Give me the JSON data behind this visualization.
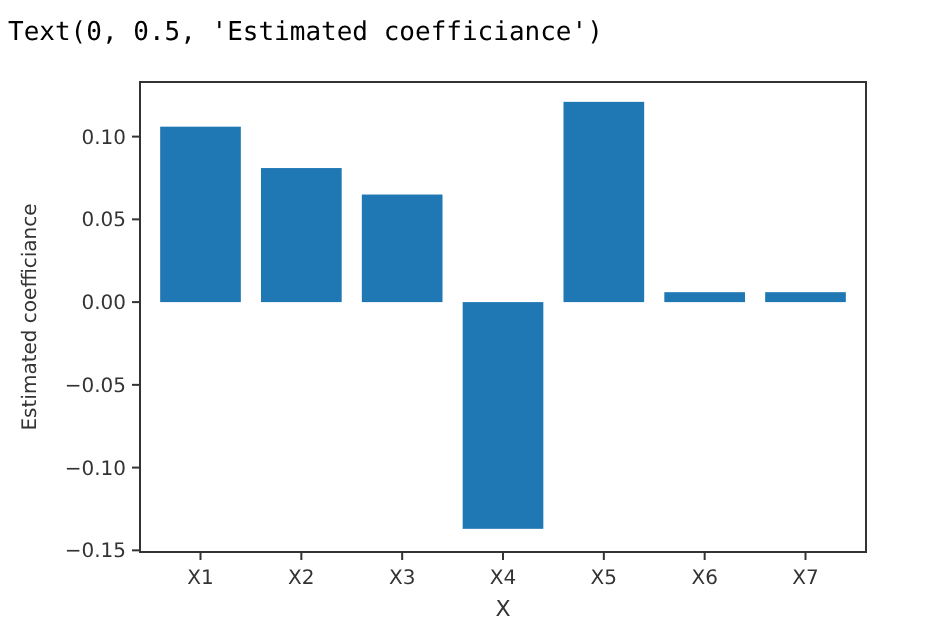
{
  "chart_data": {
    "type": "bar",
    "xlabel": "X",
    "ylabel": "Estimated coefficiance",
    "annotations": [
      "Text(0, 0.5, 'Estimated coefficiance')"
    ],
    "categories": [
      "X1",
      "X2",
      "X3",
      "X4",
      "X5",
      "X6",
      "X7"
    ],
    "values": [
      0.106,
      0.081,
      0.065,
      -0.137,
      0.121,
      0.006,
      0.006
    ],
    "color": "#1f77b4",
    "ylim": [
      -0.151,
      0.133
    ],
    "yticks": [
      {
        "value": -0.15,
        "label": "−0.15"
      },
      {
        "value": -0.1,
        "label": "−0.10"
      },
      {
        "value": -0.05,
        "label": "−0.05"
      },
      {
        "value": 0,
        "label": "0.00"
      },
      {
        "value": 0.05,
        "label": "0.05"
      },
      {
        "value": 0.1,
        "label": "0.10"
      }
    ]
  }
}
